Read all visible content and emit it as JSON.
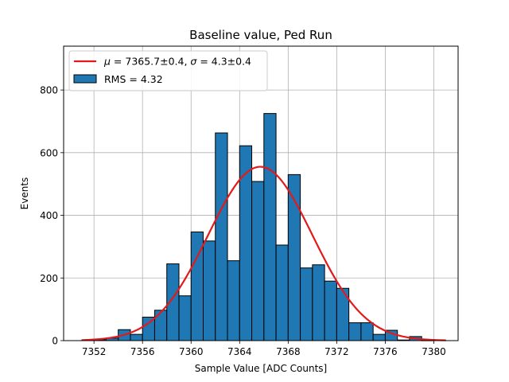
{
  "chart_data": {
    "type": "bar",
    "title": "Baseline value, Ped Run",
    "xlabel": "Sample Value [ADC Counts]",
    "ylabel": "Events",
    "xlim": [
      7349.5,
      7382
    ],
    "ylim": [
      0,
      940
    ],
    "xticks": [
      "7352",
      "7356",
      "7360",
      "7364",
      "7368",
      "7372",
      "7376",
      "7380"
    ],
    "yticks": [
      "0",
      "200",
      "400",
      "600",
      "800"
    ],
    "grid": true,
    "legend_position": "top-left",
    "histogram": {
      "name": "RMS = 4.32",
      "bin_width": 1,
      "bins": [
        {
          "x0": 7351.0,
          "count": 2
        },
        {
          "x0": 7352.0,
          "count": 3
        },
        {
          "x0": 7353.0,
          "count": 8
        },
        {
          "x0": 7354.0,
          "count": 35
        },
        {
          "x0": 7355.0,
          "count": 20
        },
        {
          "x0": 7356.0,
          "count": 75
        },
        {
          "x0": 7357.0,
          "count": 97
        },
        {
          "x0": 7358.0,
          "count": 245
        },
        {
          "x0": 7359.0,
          "count": 143
        },
        {
          "x0": 7360.0,
          "count": 347
        },
        {
          "x0": 7361.0,
          "count": 318
        },
        {
          "x0": 7362.0,
          "count": 663
        },
        {
          "x0": 7363.0,
          "count": 255
        },
        {
          "x0": 7364.0,
          "count": 622
        },
        {
          "x0": 7365.0,
          "count": 508
        },
        {
          "x0": 7366.0,
          "count": 725
        },
        {
          "x0": 7367.0,
          "count": 305
        },
        {
          "x0": 7368.0,
          "count": 530
        },
        {
          "x0": 7369.0,
          "count": 232
        },
        {
          "x0": 7370.0,
          "count": 242
        },
        {
          "x0": 7371.0,
          "count": 190
        },
        {
          "x0": 7372.0,
          "count": 167
        },
        {
          "x0": 7373.0,
          "count": 57
        },
        {
          "x0": 7374.0,
          "count": 57
        },
        {
          "x0": 7375.0,
          "count": 20
        },
        {
          "x0": 7376.0,
          "count": 33
        },
        {
          "x0": 7377.0,
          "count": 2
        },
        {
          "x0": 7378.0,
          "count": 13
        },
        {
          "x0": 7379.0,
          "count": 1
        }
      ]
    },
    "fit": {
      "mean": 7365.7,
      "mean_err": 0.4,
      "sigma": 4.3,
      "sigma_err": 0.4,
      "amplitude": 555,
      "x_range": [
        7351,
        7381
      ],
      "legend_math_mu": "μ",
      "legend_math_sigma": "σ",
      "legend_rest_1": " = 7365.7±0.4, ",
      "legend_rest_2": " = 4.3±0.4"
    },
    "colors": {
      "bar_fill": "#1f77b4",
      "bar_edge": "#000000",
      "fit_line": "#e31a1c",
      "grid": "#b0b0b0"
    }
  }
}
